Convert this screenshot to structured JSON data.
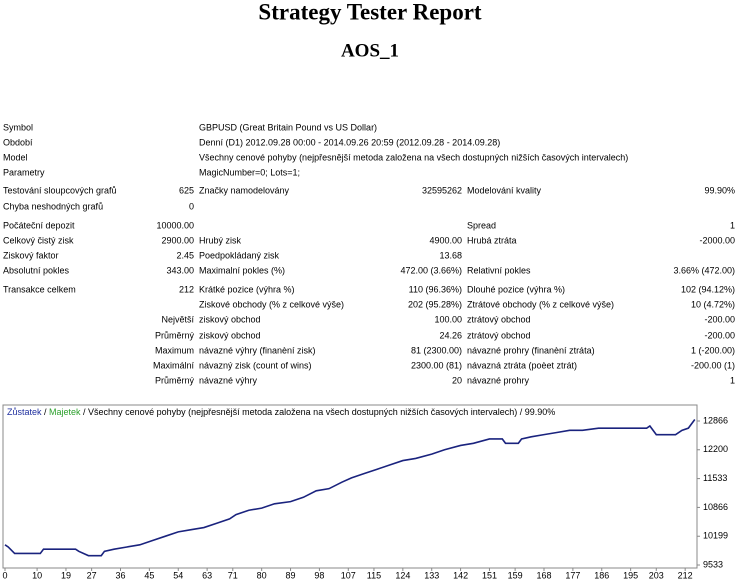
{
  "header": {
    "title": "Strategy Tester Report",
    "subtitle": "AOS_1"
  },
  "table": {
    "rows": [
      [
        "Symbol",
        null,
        "GBPUSD (Great Britain Pound vs US Dollar)"
      ],
      [
        "Období",
        null,
        "Denní (D1) 2012.09.28 00:00 - 2014.09.26 20:59 (2012.09.28 - 2014.09.28)"
      ],
      [
        "Model",
        null,
        "Všechny cenové pohyby (nejpřesnější metoda založena na všech dostupných nižších časových intervalech)"
      ],
      [
        "Parametry",
        null,
        "MagicNumber=0; Lots=1;"
      ],
      [
        "Testování sloupcových grafů",
        "625",
        "Značky namodelovány",
        "32595262",
        "Modelování kvality",
        "99.90%"
      ],
      [
        "Chyba neshodných grafů",
        "0"
      ],
      [
        "Počáteční depozit",
        "10000.00",
        null,
        null,
        "Spread",
        "1"
      ],
      [
        "Celkový čistý zisk",
        "2900.00",
        "Hrubý zisk",
        "4900.00",
        "Hrubá ztráta",
        "-2000.00"
      ],
      [
        "Ziskový faktor",
        "2.45",
        "Poedpokládaný zisk",
        "13.68"
      ],
      [
        "Absolutní pokles",
        "343.00",
        "Maximalní pokles (%)",
        "472.00 (3.66%)",
        "Relativní pokles",
        "3.66% (472.00)"
      ],
      [
        "Transakce celkem",
        "212",
        "Krátké pozice (výhra %)",
        "110 (96.36%)",
        "Dlouhé pozice (výhra %)",
        "102 (94.12%)"
      ],
      [
        null,
        null,
        "Ziskové obchody (% z celkové výše)",
        "202 (95.28%)",
        "Ztrátové obchody (% z celkové výše)",
        "10 (4.72%)"
      ],
      [
        null,
        "Největší",
        "ziskový obchod",
        "100.00",
        "ztrátový obchod",
        "-200.00"
      ],
      [
        null,
        "Průměrný",
        "ziskový obchod",
        "24.26",
        "ztrátový obchod",
        "-200.00"
      ],
      [
        null,
        "Maximum",
        "návazné výhry (finanèní zisk)",
        "81 (2300.00)",
        "návazné prohry (finanèní ztráta)",
        "1 (-200.00)"
      ],
      [
        null,
        "Maximální",
        "návazný zisk (count of wins)",
        "2300.00 (81)",
        "návazná ztráta (poèet ztrát)",
        "-200.00 (1)"
      ],
      [
        null,
        "Průměrný",
        "návazné výhry",
        "20",
        "návazné prohry",
        "1"
      ]
    ]
  },
  "chart_data": {
    "type": "line",
    "legend": [
      {
        "text": "Zůstatek",
        "color": "#1f2f9e"
      },
      {
        "text": " / ",
        "color": "#000000"
      },
      {
        "text": "Majetek",
        "color": "#2ca02c"
      },
      {
        "text": " / Všechny cenové pohyby (nejpřesnější metoda založena na všech dostupných nižších časových intervalech) / 99.90%",
        "color": "#000000"
      }
    ],
    "x": [
      0,
      1,
      3,
      11,
      12,
      22,
      23,
      26,
      30,
      31,
      34,
      38,
      42,
      46,
      50,
      54,
      58,
      62,
      66,
      70,
      72,
      76,
      80,
      84,
      89,
      93,
      97,
      101,
      105,
      108,
      112,
      116,
      120,
      124,
      128,
      133,
      137,
      142,
      146,
      151,
      155,
      156,
      160,
      161,
      164,
      168,
      172,
      176,
      180,
      185,
      200,
      201,
      203,
      209,
      211,
      213,
      215
    ],
    "series": [
      {
        "color": "#1a237e",
        "values": [
          10000,
          9950,
          9800,
          9800,
          9900,
          9900,
          9850,
          9750,
          9750,
          9850,
          9900,
          9950,
          10000,
          10100,
          10200,
          10300,
          10350,
          10400,
          10500,
          10600,
          10700,
          10800,
          10850,
          10950,
          11000,
          11100,
          11250,
          11300,
          11450,
          11550,
          11650,
          11750,
          11850,
          11950,
          12000,
          12100,
          12200,
          12300,
          12350,
          12450,
          12450,
          12350,
          12350,
          12450,
          12500,
          12550,
          12600,
          12650,
          12650,
          12700,
          12700,
          12750,
          12550,
          12550,
          12650,
          12700,
          12900
        ]
      }
    ],
    "xlim": [
      0,
      216
    ],
    "xticks": [
      0,
      10,
      19,
      27,
      36,
      45,
      54,
      63,
      71,
      80,
      89,
      98,
      107,
      115,
      124,
      133,
      142,
      151,
      159,
      168,
      177,
      186,
      195,
      203,
      212
    ],
    "ylim": [
      9464,
      13236
    ],
    "yticks": [
      9533,
      10199,
      10866,
      11533,
      12200,
      12866
    ]
  }
}
